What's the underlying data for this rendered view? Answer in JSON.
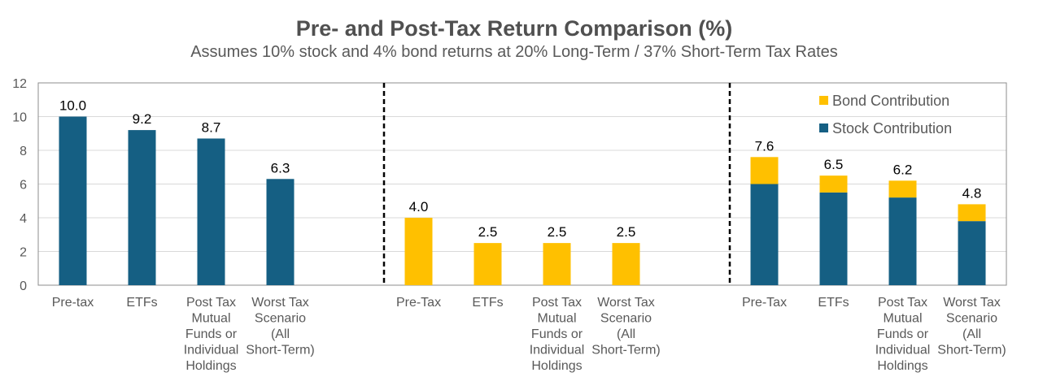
{
  "title": "Pre- and Post-Tax Return Comparison (%)",
  "subtitle": "Assumes 10% stock and 4% bond returns at 20% Long-Term / 37% Short-Term Tax Rates",
  "colors": {
    "stock": "#155F83",
    "bond": "#FFC000"
  },
  "chart_data": {
    "type": "bar",
    "stacked": true,
    "ylim": [
      0,
      12
    ],
    "yticks": [
      0,
      2,
      4,
      6,
      8,
      10,
      12
    ],
    "grid": true,
    "legend_position": "top-right",
    "legend": [
      "Bond Contribution",
      "Stock Contribution"
    ],
    "panels": [
      {
        "categories": [
          "Pre-tax",
          "ETFs",
          "Post Tax Mutual Funds or Individual Holdings",
          "Worst Tax Scenario (All Short-Term)"
        ],
        "series": [
          {
            "name": "Stock Contribution",
            "values": [
              10.0,
              9.2,
              8.7,
              6.3
            ]
          },
          {
            "name": "Bond Contribution",
            "values": [
              0,
              0,
              0,
              0
            ]
          }
        ],
        "totals": [
          "10.0",
          "9.2",
          "8.7",
          "6.3"
        ]
      },
      {
        "categories": [
          "Pre-Tax",
          "ETFs",
          "Post Tax Mutual Funds or Individual Holdings",
          "Worst Tax Scenario (All Short-Term)"
        ],
        "series": [
          {
            "name": "Stock Contribution",
            "values": [
              0,
              0,
              0,
              0
            ]
          },
          {
            "name": "Bond Contribution",
            "values": [
              4.0,
              2.5,
              2.5,
              2.5
            ]
          }
        ],
        "totals": [
          "4.0",
          "2.5",
          "2.5",
          "2.5"
        ]
      },
      {
        "categories": [
          "Pre-Tax",
          "ETFs",
          "Post Tax Mutual Funds or Individual Holdings",
          "Worst Tax Scenario (All Short-Term)"
        ],
        "series": [
          {
            "name": "Stock Contribution",
            "values": [
              6.0,
              5.5,
              5.2,
              3.8
            ]
          },
          {
            "name": "Bond Contribution",
            "values": [
              1.6,
              1.0,
              1.0,
              1.0
            ]
          }
        ],
        "totals": [
          "7.6",
          "6.5",
          "6.2",
          "4.8"
        ]
      }
    ]
  }
}
